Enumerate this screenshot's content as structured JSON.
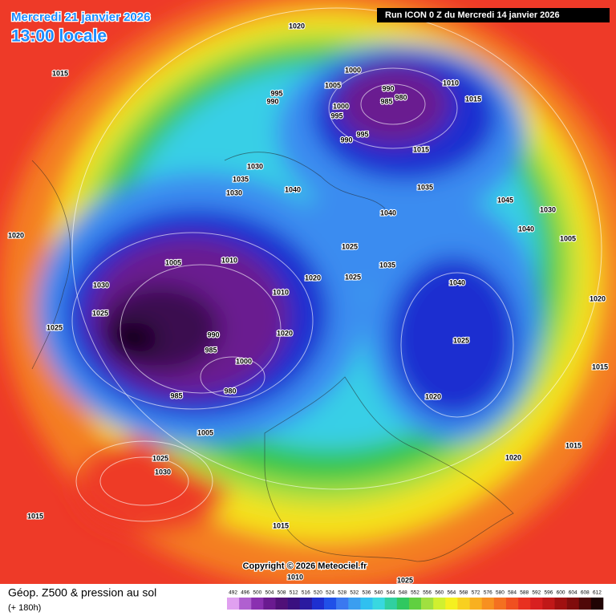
{
  "header": {
    "date": "Mercredi 21 janvier 2026",
    "time": "13:00 locale",
    "run": "Run ICON 0 Z du Mercredi 14 janvier 2026"
  },
  "map": {
    "copyright": "Copyright © 2026 Meteociel.fr",
    "pressure_labels": [
      1020,
      1015,
      1000,
      1005,
      990,
      985,
      980,
      1010,
      1015,
      995,
      990,
      1000,
      995,
      990,
      995,
      1015,
      1030,
      1035,
      1030,
      1040,
      1035,
      1040,
      1045,
      1030,
      1020,
      1040,
      1005,
      1025,
      1010,
      1005,
      1035,
      1020,
      1025,
      1040,
      1030,
      1025,
      1025,
      1010,
      1020,
      990,
      985,
      1000,
      980,
      985,
      1025,
      1020,
      1005,
      1025,
      1030,
      1015,
      1020,
      1015,
      1015,
      1020,
      1015,
      1010,
      1025
    ]
  },
  "legend": {
    "title": "Géop. Z500 & pression au sol",
    "subtitle": "(+ 180h)",
    "ticks": [
      492,
      496,
      500,
      504,
      508,
      512,
      516,
      520,
      524,
      528,
      532,
      536,
      540,
      544,
      548,
      552,
      556,
      560,
      564,
      568,
      572,
      576,
      580,
      584,
      588,
      592,
      596,
      600,
      604,
      608,
      612
    ],
    "colors": [
      "#e0a0f0",
      "#b060d0",
      "#8a30b0",
      "#6a1a90",
      "#501078",
      "#3a1080",
      "#2a1aa0",
      "#1e2fd0",
      "#2050e8",
      "#3a78f0",
      "#3a9ef0",
      "#30c0f0",
      "#38d8e0",
      "#30d0a0",
      "#30c860",
      "#60d040",
      "#a0e040",
      "#d0f030",
      "#f5f020",
      "#f8d020",
      "#f8b020",
      "#f79020",
      "#f47020",
      "#f05020",
      "#e83020",
      "#d82020",
      "#c01818",
      "#a01010",
      "#800c0c",
      "#500808",
      "#200404"
    ]
  }
}
